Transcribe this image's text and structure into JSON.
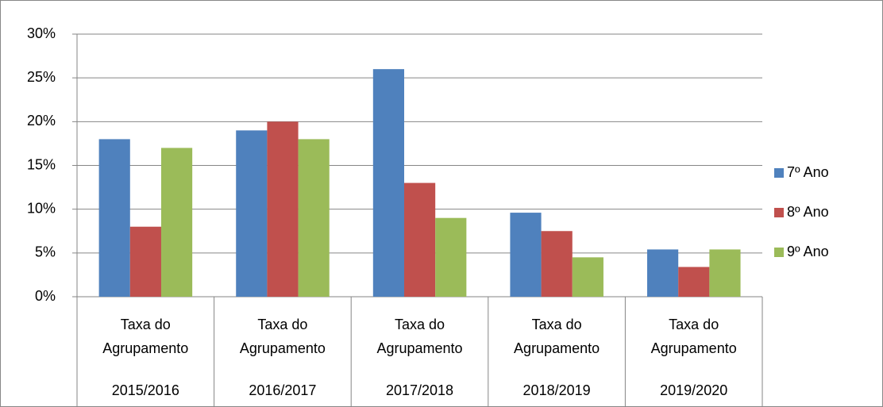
{
  "chart_data": {
    "type": "bar",
    "categories": [
      {
        "label": "Taxa do Agrupamento",
        "period": "2015/2016"
      },
      {
        "label": "Taxa do Agrupamento",
        "period": "2016/2017"
      },
      {
        "label": "Taxa do Agrupamento",
        "period": "2017/2018"
      },
      {
        "label": "Taxa do Agrupamento",
        "period": "2018/2019"
      },
      {
        "label": "Taxa do Agrupamento",
        "period": "2019/2020"
      }
    ],
    "series": [
      {
        "name": "7º Ano",
        "color": "#4f81bd",
        "values": [
          18,
          19,
          26,
          9.6,
          5.4
        ]
      },
      {
        "name": "8º Ano",
        "color": "#c0504d",
        "values": [
          8,
          20,
          13,
          7.5,
          3.4
        ]
      },
      {
        "name": "9º Ano",
        "color": "#9bbb59",
        "values": [
          17,
          18,
          9,
          4.5,
          5.4
        ]
      }
    ],
    "ylim": [
      0,
      30
    ],
    "yticks": [
      {
        "value": 0,
        "label": "0%"
      },
      {
        "value": 5,
        "label": "5%"
      },
      {
        "value": 10,
        "label": "10%"
      },
      {
        "value": 15,
        "label": "15%"
      },
      {
        "value": 20,
        "label": "20%"
      },
      {
        "value": 25,
        "label": "25%"
      },
      {
        "value": 30,
        "label": "30%"
      }
    ],
    "grid": true,
    "legend": "right"
  }
}
